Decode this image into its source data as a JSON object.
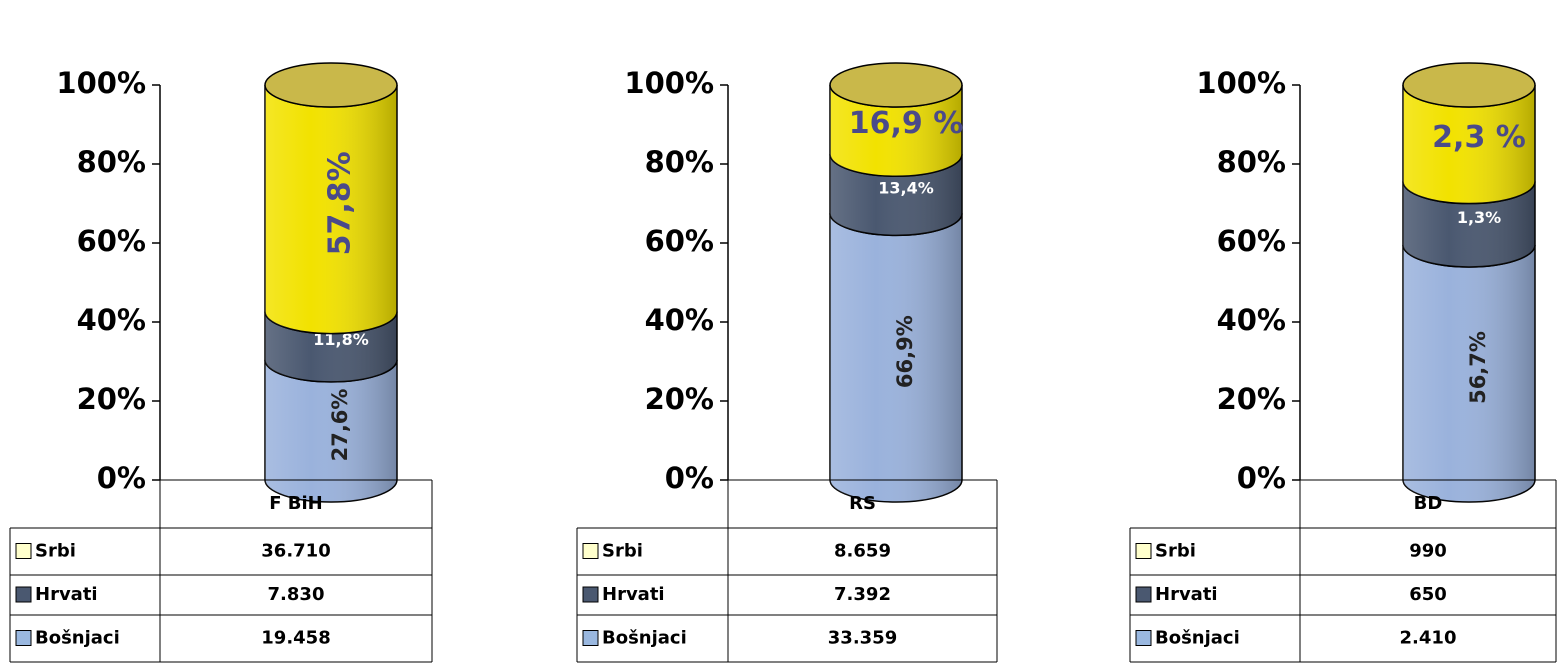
{
  "chart_data": [
    {
      "type": "bar",
      "stacked": "percent",
      "categories": [
        "F BiH"
      ],
      "ylim": [
        0,
        100
      ],
      "yticks": [
        {
          "value": 0,
          "label": "0%"
        },
        {
          "value": 20,
          "label": "20%"
        },
        {
          "value": 40,
          "label": "40%"
        },
        {
          "value": 60,
          "label": "60%"
        },
        {
          "value": 80,
          "label": "80%"
        },
        {
          "value": 100,
          "label": "100%"
        }
      ],
      "series": [
        {
          "name": "Srbi",
          "color": "#f2e200",
          "values": [
            36710
          ],
          "value_labels": [
            "36.710"
          ],
          "data_label": "57,8%"
        },
        {
          "name": "Hrvati",
          "color": "#4a5870",
          "values": [
            7830
          ],
          "value_labels": [
            "7.830"
          ],
          "data_label": "11,8%"
        },
        {
          "name": "Bošnjaci",
          "color": "#9ab2dc",
          "values": [
            19458
          ],
          "value_labels": [
            "19.458"
          ],
          "data_label": "27,6%"
        }
      ]
    },
    {
      "type": "bar",
      "stacked": "percent",
      "categories": [
        "RS"
      ],
      "ylim": [
        0,
        100
      ],
      "yticks": [
        {
          "value": 0,
          "label": "0%"
        },
        {
          "value": 20,
          "label": "20%"
        },
        {
          "value": 40,
          "label": "40%"
        },
        {
          "value": 60,
          "label": "60%"
        },
        {
          "value": 80,
          "label": "80%"
        },
        {
          "value": 100,
          "label": "100%"
        }
      ],
      "series": [
        {
          "name": "Srbi",
          "color": "#f2e200",
          "values": [
            8659
          ],
          "value_labels": [
            "8.659"
          ],
          "data_label": "16,9 %"
        },
        {
          "name": "Hrvati",
          "color": "#4a5870",
          "values": [
            7392
          ],
          "value_labels": [
            "7.392"
          ],
          "data_label": "13,4%"
        },
        {
          "name": "Bošnjaci",
          "color": "#9ab2dc",
          "values": [
            33359
          ],
          "value_labels": [
            "33.359"
          ],
          "data_label": "66,9%"
        }
      ]
    },
    {
      "type": "bar",
      "stacked": "percent",
      "categories": [
        "BD"
      ],
      "ylim": [
        0,
        100
      ],
      "yticks": [
        {
          "value": 0,
          "label": "0%"
        },
        {
          "value": 20,
          "label": "20%"
        },
        {
          "value": 40,
          "label": "40%"
        },
        {
          "value": 60,
          "label": "60%"
        },
        {
          "value": 80,
          "label": "80%"
        },
        {
          "value": 100,
          "label": "100%"
        }
      ],
      "series": [
        {
          "name": "Srbi",
          "color": "#f2e200",
          "values": [
            990
          ],
          "value_labels": [
            "990"
          ],
          "data_label": "2,3 %"
        },
        {
          "name": "Hrvati",
          "color": "#4a5870",
          "values": [
            650
          ],
          "value_labels": [
            "650"
          ],
          "data_label": "1,3%"
        },
        {
          "name": "Bošnjaci",
          "color": "#9ab2dc",
          "values": [
            2410
          ],
          "value_labels": [
            "2.410"
          ],
          "data_label": "56,7%"
        }
      ]
    }
  ]
}
